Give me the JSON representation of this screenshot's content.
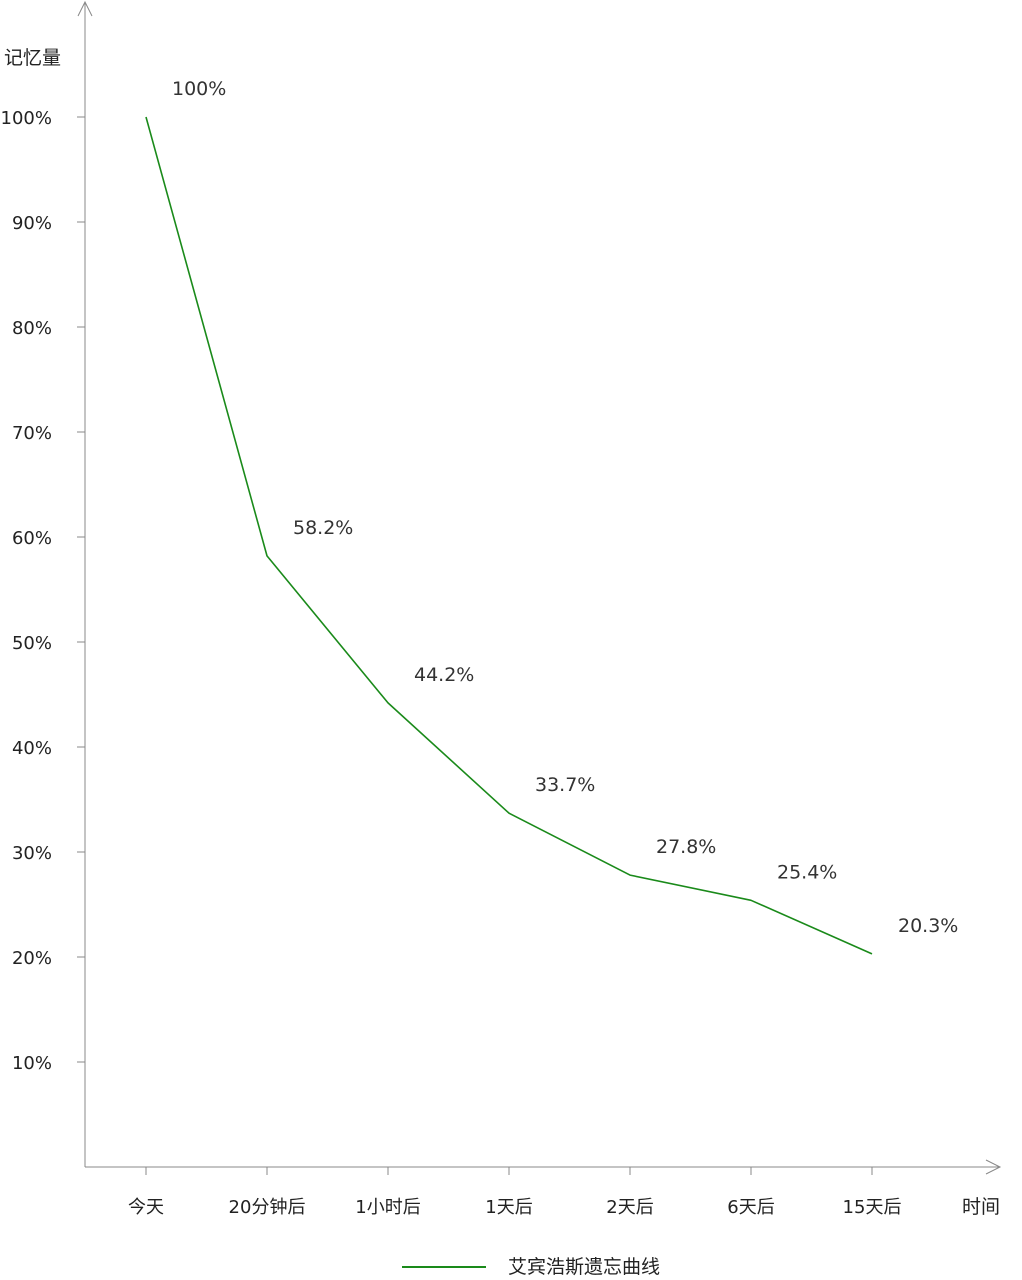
{
  "chart_data": {
    "type": "line",
    "title": "",
    "xlabel": "时间",
    "ylabel": "记忆量",
    "categories": [
      "今天",
      "20分钟后",
      "1小时后",
      "1天后",
      "2天后",
      "6天后",
      "15天后"
    ],
    "series": [
      {
        "name": "艾宾浩斯遗忘曲线",
        "values": [
          100,
          58.2,
          44.2,
          33.7,
          27.8,
          25.4,
          20.3
        ],
        "labels": [
          "100%",
          "58.2%",
          "44.2%",
          "33.7%",
          "27.8%",
          "25.4%",
          "20.3%"
        ],
        "color": "#1a8a1a"
      }
    ],
    "y_ticks": [
      "10%",
      "20%",
      "30%",
      "40%",
      "50%",
      "60%",
      "70%",
      "80%",
      "90%",
      "100%"
    ],
    "ylim": [
      0,
      100
    ],
    "grid": false,
    "legend_position": "bottom-center",
    "axis_color": "#888888"
  }
}
